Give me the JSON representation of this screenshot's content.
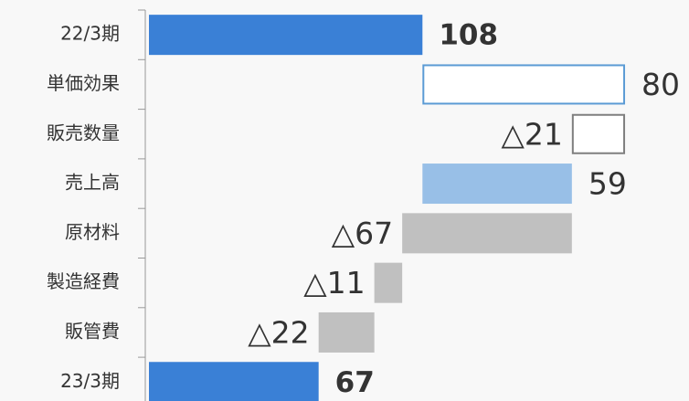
{
  "chart_data": {
    "type": "waterfall",
    "categories": [
      "22/3期",
      "単価効果",
      "販売数量",
      "売上高",
      "原材料",
      "製造経費",
      "販管費",
      "23/3期"
    ],
    "values": [
      108,
      80,
      -21,
      59,
      -67,
      -11,
      -22,
      67
    ],
    "value_labels": [
      "108",
      "80",
      "△21",
      "59",
      "△67",
      "△11",
      "△22",
      "67"
    ],
    "kinds": [
      "total",
      "increase",
      "decrease-hollow",
      "subtotal",
      "decrease",
      "decrease",
      "decrease",
      "total"
    ],
    "styles": {
      "total": {
        "fill": "#3a80d6",
        "stroke": "none",
        "bold": true
      },
      "increase": {
        "fill": "#ffffff",
        "stroke": "#5b9bd5",
        "bold": false
      },
      "decrease-hollow": {
        "fill": "#ffffff",
        "stroke": "#7f7f7f",
        "bold": false
      },
      "subtotal": {
        "fill": "#98bfe7",
        "stroke": "none",
        "bold": false
      },
      "decrease": {
        "fill": "#c0c0c0",
        "stroke": "none",
        "bold": false
      }
    },
    "xlim": [
      0,
      210
    ]
  }
}
